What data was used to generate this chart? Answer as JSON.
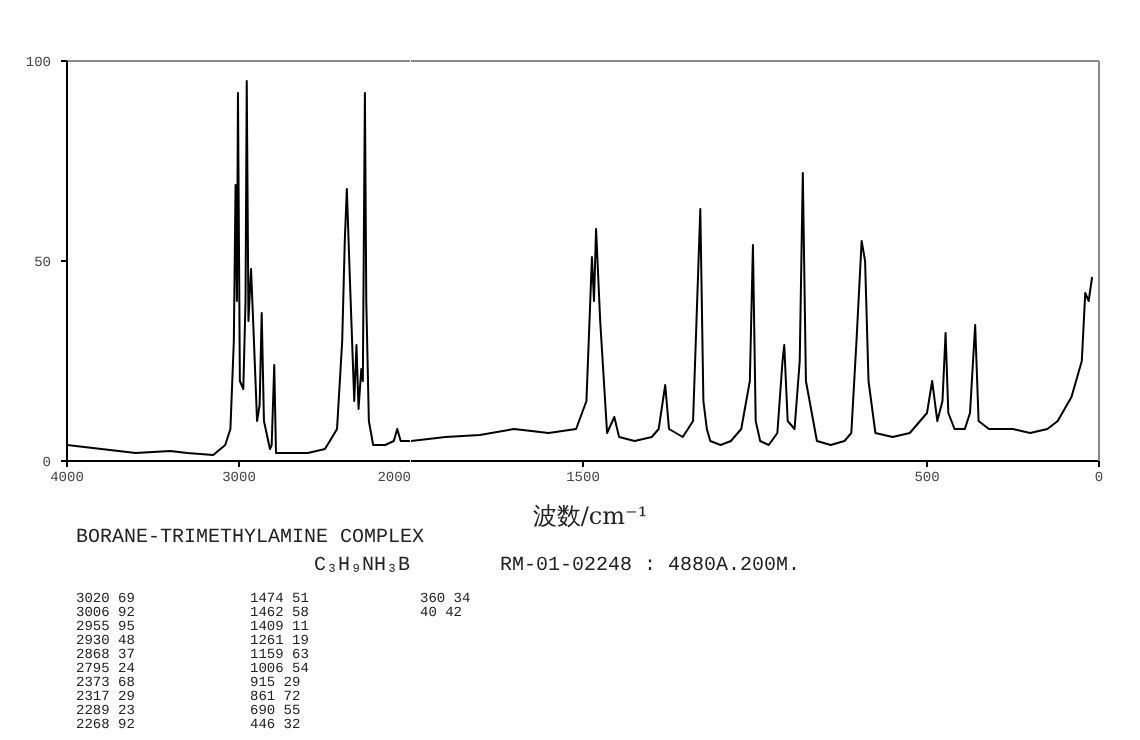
{
  "chart_data": [
    {
      "type": "line",
      "color": "#000000",
      "x": [
        4000,
        3800,
        3600,
        3400,
        3300,
        3150,
        3080,
        3050,
        3030,
        3020,
        3012,
        3006,
        2995,
        2975,
        2962,
        2955,
        2945,
        2935,
        2930,
        2915,
        2895,
        2880,
        2868,
        2855,
        2820,
        2810,
        2795,
        2785,
        2750,
        2600,
        2500,
        2430,
        2400,
        2385,
        2373,
        2355,
        2330,
        2317,
        2305,
        2289,
        2280,
        2268,
        2260,
        2245,
        2220,
        2150,
        2100,
        2080,
        2060,
        2000
      ],
      "values": [
        4,
        3,
        2,
        2.5,
        2,
        1.5,
        4,
        8,
        30,
        69,
        40,
        92,
        20,
        18,
        40,
        95,
        35,
        44,
        48,
        32,
        10,
        14,
        37,
        10,
        3,
        4,
        24,
        2,
        2,
        2,
        3,
        8,
        30,
        55,
        68,
        45,
        15,
        29,
        13,
        23,
        20,
        92,
        40,
        10,
        4,
        4,
        5,
        8,
        5,
        5
      ],
      "xlim": [
        4000,
        2000
      ],
      "xticks": [
        4000,
        3000,
        2000
      ],
      "ylim": [
        0,
        100
      ],
      "yticks": [
        0,
        50,
        100
      ]
    },
    {
      "type": "line",
      "color": "#000000",
      "x": [
        2000,
        1900,
        1800,
        1700,
        1600,
        1520,
        1490,
        1474,
        1468,
        1462,
        1450,
        1430,
        1409,
        1395,
        1350,
        1300,
        1280,
        1261,
        1250,
        1210,
        1180,
        1159,
        1150,
        1140,
        1130,
        1100,
        1070,
        1040,
        1015,
        1006,
        998,
        985,
        960,
        935,
        920,
        915,
        905,
        885,
        870,
        861,
        852,
        820,
        780,
        740,
        720,
        705,
        690,
        680,
        670,
        650,
        600,
        550,
        520,
        500,
        485,
        470,
        455,
        446,
        438,
        420,
        390,
        375,
        360,
        350,
        320,
        250,
        200,
        150,
        120,
        80,
        50,
        40,
        30,
        20
      ],
      "values": [
        5,
        6,
        6.5,
        8,
        7,
        8,
        15,
        51,
        40,
        58,
        35,
        7,
        11,
        6,
        5,
        6,
        8,
        19,
        8,
        6,
        10,
        63,
        15,
        8,
        5,
        4,
        5,
        8,
        20,
        54,
        10,
        5,
        4,
        7,
        25,
        29,
        10,
        8,
        25,
        72,
        20,
        5,
        4,
        5,
        7,
        30,
        55,
        50,
        20,
        7,
        6,
        7,
        10,
        12,
        20,
        10,
        15,
        32,
        12,
        8,
        8,
        12,
        34,
        10,
        8,
        8,
        7,
        8,
        10,
        16,
        25,
        42,
        40,
        46
      ],
      "xlim": [
        2000,
        0
      ],
      "xticks": [
        1500,
        500,
        0
      ],
      "ylim": [
        0,
        100
      ],
      "tick_labels": "x",
      "xlabel": "波数/cm⁻¹",
      "annotations": [
        "BORANE-TRIMETHYLAMINE COMPLEX",
        "C₃H₉NH₃B",
        "RM-01-02248 : 4880A.200M.",
        "3020 69",
        "3006 92",
        "2955 95",
        "2930 48",
        "2868 37",
        "2795 24",
        "2373 68",
        "2317 29",
        "2289 23",
        "2268 92",
        "1474 51",
        "1462 58",
        "1409 11",
        "1261 19",
        "1159 63",
        "1006 54",
        "915 29",
        "861 72",
        "690 55",
        "446 32",
        "360 34",
        "40 42"
      ]
    }
  ]
}
